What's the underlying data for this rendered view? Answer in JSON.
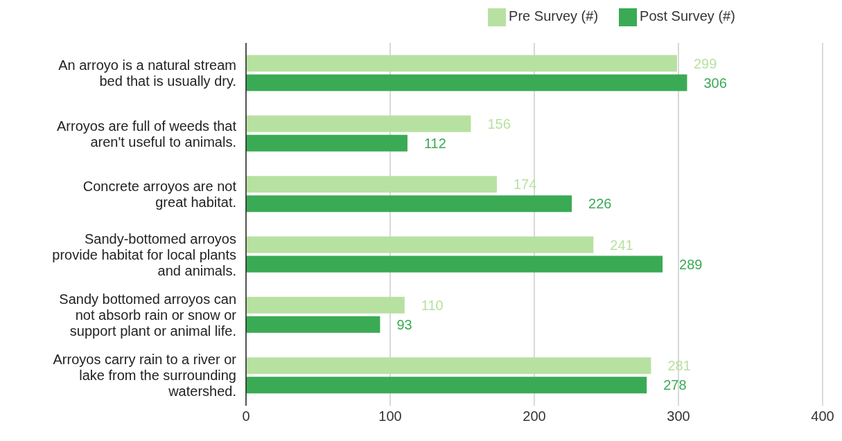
{
  "chart_data": {
    "type": "bar",
    "orientation": "horizontal",
    "categories": [
      "An arroyo is a natural stream bed that is usually dry.",
      "Arroyos are full of weeds that aren't useful to animals.",
      "Concrete arroyos are not great habitat.",
      "Sandy-bottomed arroyos provide habitat for local plants and animals.",
      "Sandy bottomed arroyos can not absorb rain or snow or support plant or animal life.",
      "Arroyos carry rain to a river or lake from the surrounding watershed."
    ],
    "series": [
      {
        "name": "Pre Survey (#)",
        "color": "#b7e1a1",
        "values": [
          299,
          156,
          174,
          241,
          110,
          281
        ]
      },
      {
        "name": "Post Survey (#)",
        "color": "#3aaa55",
        "values": [
          306,
          112,
          226,
          289,
          93,
          278
        ]
      }
    ],
    "xlim": [
      0,
      400
    ],
    "xticks": [
      0,
      100,
      200,
      300,
      400
    ],
    "grid": "x",
    "legend": "top",
    "data_labels": true
  }
}
